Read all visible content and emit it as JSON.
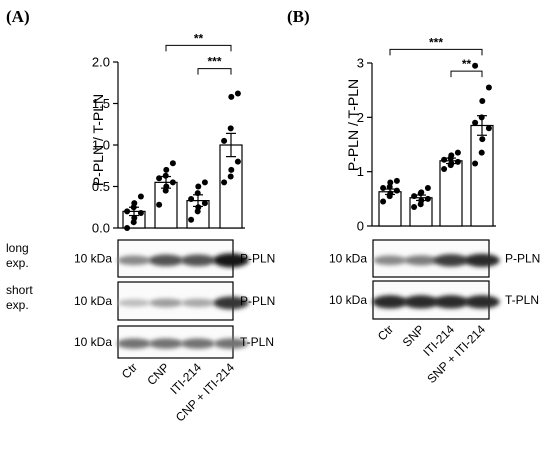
{
  "chart_data": [
    {
      "panel": "(A)",
      "type": "bar",
      "ylabel": "P-PLN / T-PLN",
      "ylim": [
        0,
        2.0
      ],
      "yticks": [
        "0.0",
        "0.5",
        "1.0",
        "1.5",
        "2.0"
      ],
      "categories": [
        "Ctr",
        "CNP",
        "ITI-214",
        "CNP + ITI-214"
      ],
      "values": [
        0.2,
        0.55,
        0.33,
        1.0
      ],
      "errors": [
        0.05,
        0.07,
        0.07,
        0.14
      ],
      "points": [
        [
          0.0,
          0.07,
          0.12,
          0.18,
          0.2,
          0.25,
          0.3,
          0.38
        ],
        [
          0.28,
          0.45,
          0.5,
          0.55,
          0.6,
          0.63,
          0.7,
          0.78
        ],
        [
          0.1,
          0.2,
          0.25,
          0.3,
          0.35,
          0.42,
          0.5,
          0.55
        ],
        [
          0.55,
          0.62,
          0.7,
          0.8,
          1.05,
          1.2,
          1.58,
          1.62
        ]
      ],
      "significance": [
        {
          "from": 1,
          "to": 3,
          "label": "**",
          "y": 2.2
        },
        {
          "from": 2,
          "to": 3,
          "label": "***",
          "y": 1.92
        }
      ],
      "blots": [
        {
          "label": "long\nexp.",
          "label_lines": [
            "long",
            "exp."
          ],
          "kda": "10 kDa",
          "protein": "P-PLN",
          "intensity": [
            0.45,
            0.7,
            0.7,
            1.0
          ]
        },
        {
          "label": "short\nexp.",
          "label_lines": [
            "short",
            "exp."
          ],
          "kda": "10 kDa",
          "protein": "P-PLN",
          "intensity": [
            0.2,
            0.35,
            0.3,
            0.85
          ]
        },
        {
          "label": "",
          "label_lines": [],
          "kda": "10 kDa",
          "protein": "T-PLN",
          "intensity": [
            0.55,
            0.55,
            0.55,
            0.55
          ]
        }
      ]
    },
    {
      "panel": "(B)",
      "type": "bar",
      "ylabel": "P-PLN / T-PLN",
      "ylim": [
        0,
        3
      ],
      "yticks": [
        "0",
        "1",
        "2",
        "3"
      ],
      "categories": [
        "Ctr",
        "SNP",
        "ITI-214",
        "SNP + ITI-214"
      ],
      "values": [
        0.63,
        0.52,
        1.2,
        1.85
      ],
      "errors": [
        0.05,
        0.05,
        0.05,
        0.18
      ],
      "points": [
        [
          0.45,
          0.55,
          0.6,
          0.65,
          0.7,
          0.72,
          0.8,
          0.83
        ],
        [
          0.35,
          0.4,
          0.47,
          0.5,
          0.55,
          0.6,
          0.62,
          0.7
        ],
        [
          1.05,
          1.12,
          1.15,
          1.18,
          1.22,
          1.25,
          1.3,
          1.35
        ],
        [
          1.15,
          1.35,
          1.6,
          1.8,
          1.9,
          2.0,
          2.3,
          2.55,
          2.95
        ]
      ],
      "significance": [
        {
          "from": 0,
          "to": 3,
          "label": "***",
          "y": 3.25
        },
        {
          "from": 2,
          "to": 3,
          "label": "**",
          "y": 2.85
        }
      ],
      "blots": [
        {
          "label": "",
          "label_lines": [],
          "kda": "10 kDa",
          "protein": "P-PLN",
          "intensity": [
            0.45,
            0.5,
            0.8,
            0.9
          ]
        },
        {
          "label": "",
          "label_lines": [],
          "kda": "10 kDa",
          "protein": "T-PLN",
          "intensity": [
            0.9,
            0.9,
            0.9,
            0.9
          ]
        }
      ]
    }
  ]
}
